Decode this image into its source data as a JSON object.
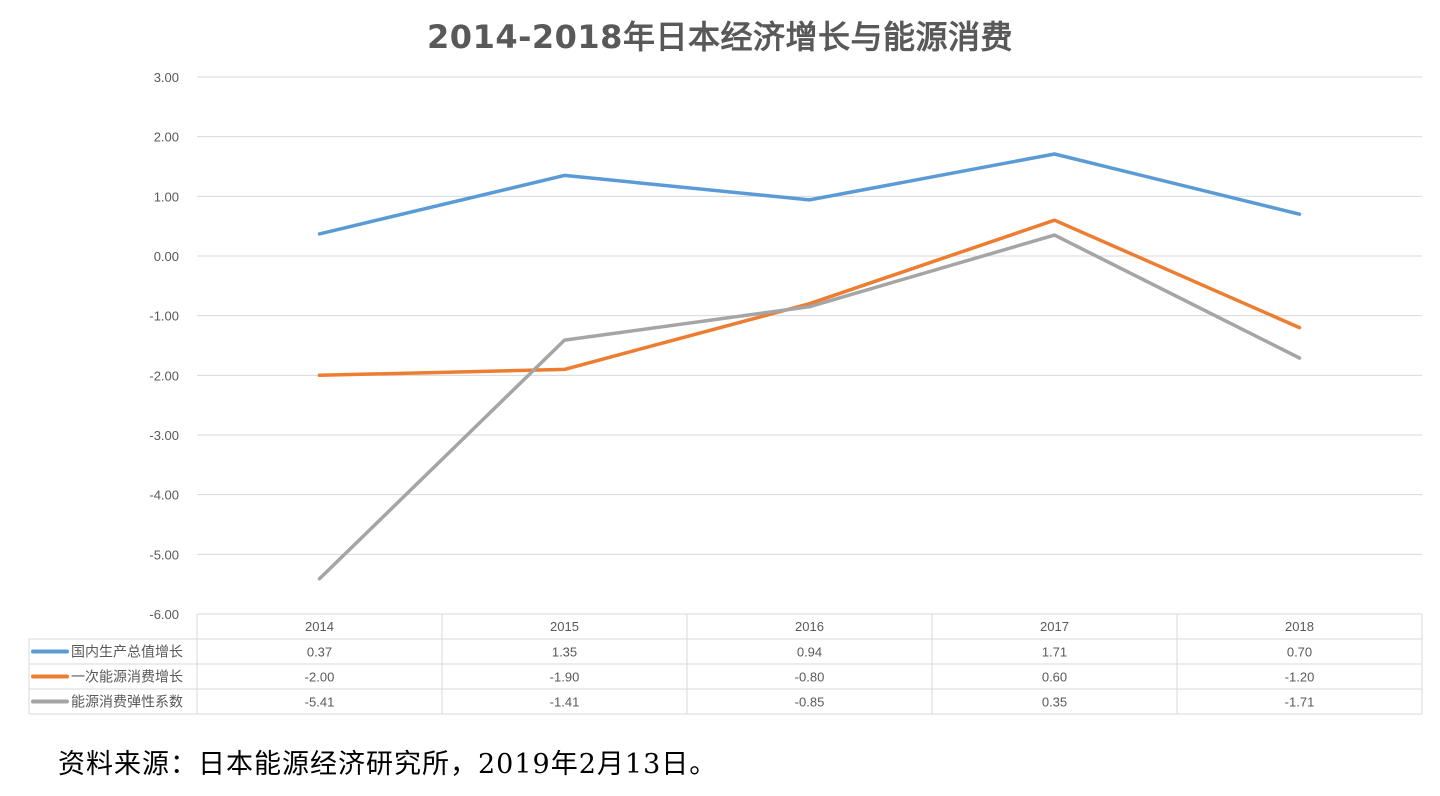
{
  "chart_data": {
    "type": "line",
    "title": "2014-2018年日本经济增长与能源消费",
    "categories": [
      "2014",
      "2015",
      "2016",
      "2017",
      "2018"
    ],
    "ylim": [
      -6,
      3
    ],
    "yticks": [
      "3.00",
      "2.00",
      "1.00",
      "0.00",
      "-1.00",
      "-2.00",
      "-3.00",
      "-4.00",
      "-5.00",
      "-6.00"
    ],
    "grid": true,
    "legend_placement": "data-table",
    "series": [
      {
        "name": "国内生产总值增长",
        "color": "#5b9bd5",
        "values": [
          0.37,
          1.35,
          0.94,
          1.71,
          0.7
        ],
        "labels": [
          "0.37",
          "1.35",
          "0.94",
          "1.71",
          "0.70"
        ]
      },
      {
        "name": "一次能源消费增长",
        "color": "#ed7d31",
        "values": [
          -2.0,
          -1.9,
          -0.8,
          0.6,
          -1.2
        ],
        "labels": [
          "-2.00",
          "-1.90",
          "-0.80",
          "0.60",
          "-1.20"
        ]
      },
      {
        "name": "能源消费弹性系数",
        "color": "#a5a5a5",
        "values": [
          -5.41,
          -1.41,
          -0.85,
          0.35,
          -1.71
        ],
        "labels": [
          "-5.41",
          "-1.41",
          "-0.85",
          "0.35",
          "-1.71"
        ]
      }
    ]
  },
  "source_note": "资料来源：日本能源经济研究所，2019年2月13日。"
}
